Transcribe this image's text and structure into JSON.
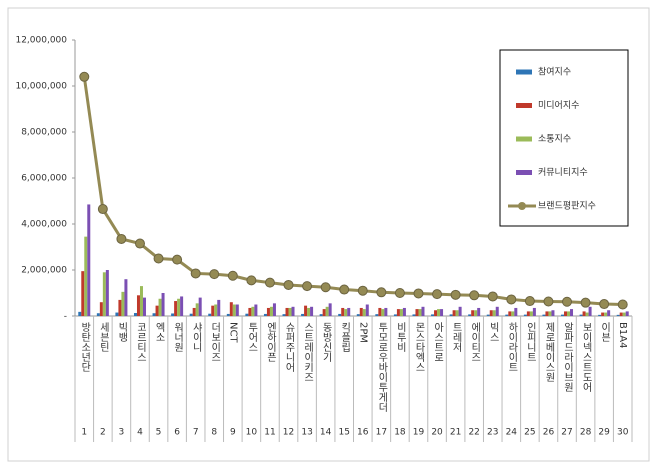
{
  "chart_data": {
    "type": "bar-line",
    "categories": [
      "방탄소년단",
      "세븐틴",
      "빅뱅",
      "코르티스",
      "엑소",
      "워너원",
      "샤이니",
      "더보이즈",
      "NCT",
      "투어스",
      "엔하이픈",
      "슈퍼주니어",
      "스트레이키즈",
      "동방신기",
      "킥플립",
      "2PM",
      "투모로우바이투게더",
      "비투비",
      "몬스타엑스",
      "아스트로",
      "트레저",
      "에이티즈",
      "빅스",
      "하이라이트",
      "인피니트",
      "제로베이스원",
      "알파드라이브원",
      "보이넥스트도어",
      "이븐",
      "B1A4"
    ],
    "ranks": [
      "1",
      "2",
      "3",
      "4",
      "5",
      "6",
      "7",
      "8",
      "9",
      "10",
      "11",
      "12",
      "13",
      "14",
      "15",
      "16",
      "17",
      "18",
      "19",
      "20",
      "21",
      "22",
      "23",
      "24",
      "25",
      "26",
      "27",
      "28",
      "29",
      "30"
    ],
    "ylim": [
      0,
      12000000
    ],
    "yticks": [
      {
        "value": 0,
        "label": "-"
      },
      {
        "value": 2000000,
        "label": "2,000,000"
      },
      {
        "value": 4000000,
        "label": "4,000,000"
      },
      {
        "value": 6000000,
        "label": "6,000,000"
      },
      {
        "value": 8000000,
        "label": "8,000,000"
      },
      {
        "value": 10000000,
        "label": "10,000,000"
      },
      {
        "value": 12000000,
        "label": "12,000,000"
      }
    ],
    "series": [
      {
        "name": "참여지수",
        "color": "#2e75b6",
        "type": "bar",
        "values": [
          180000,
          120000,
          150000,
          130000,
          120000,
          110000,
          100000,
          100000,
          90000,
          100000,
          90000,
          80000,
          90000,
          80000,
          90000,
          80000,
          80000,
          70000,
          70000,
          70000,
          70000,
          70000,
          60000,
          60000,
          60000,
          60000,
          60000,
          60000,
          50000,
          50000
        ]
      },
      {
        "name": "미디어지수",
        "color": "#c0392b",
        "type": "bar",
        "values": [
          1950000,
          600000,
          700000,
          900000,
          450000,
          650000,
          350000,
          450000,
          600000,
          350000,
          350000,
          350000,
          450000,
          300000,
          350000,
          350000,
          350000,
          300000,
          300000,
          250000,
          250000,
          250000,
          250000,
          200000,
          200000,
          200000,
          200000,
          200000,
          150000,
          150000
        ]
      },
      {
        "name": "소통지수",
        "color": "#9bbb59",
        "type": "bar",
        "values": [
          3450000,
          1900000,
          1050000,
          1300000,
          750000,
          750000,
          550000,
          500000,
          500000,
          400000,
          400000,
          350000,
          350000,
          400000,
          300000,
          300000,
          300000,
          300000,
          300000,
          300000,
          250000,
          250000,
          250000,
          200000,
          200000,
          200000,
          200000,
          150000,
          150000,
          150000
        ]
      },
      {
        "name": "커뮤니티지수",
        "color": "#7b4fb3",
        "type": "bar",
        "values": [
          4850000,
          2000000,
          1600000,
          800000,
          1000000,
          850000,
          800000,
          700000,
          500000,
          500000,
          550000,
          400000,
          400000,
          550000,
          350000,
          500000,
          350000,
          350000,
          400000,
          300000,
          400000,
          350000,
          400000,
          350000,
          350000,
          250000,
          300000,
          400000,
          250000,
          200000
        ]
      },
      {
        "name": "브랜드평판지수",
        "color": "#948a54",
        "type": "line",
        "values": [
          10400000,
          4650000,
          3350000,
          3150000,
          2500000,
          2450000,
          1850000,
          1820000,
          1750000,
          1550000,
          1450000,
          1350000,
          1300000,
          1250000,
          1150000,
          1100000,
          1030000,
          1000000,
          980000,
          950000,
          920000,
          900000,
          850000,
          720000,
          650000,
          630000,
          620000,
          580000,
          520000,
          500000
        ]
      }
    ],
    "legend": "right"
  }
}
